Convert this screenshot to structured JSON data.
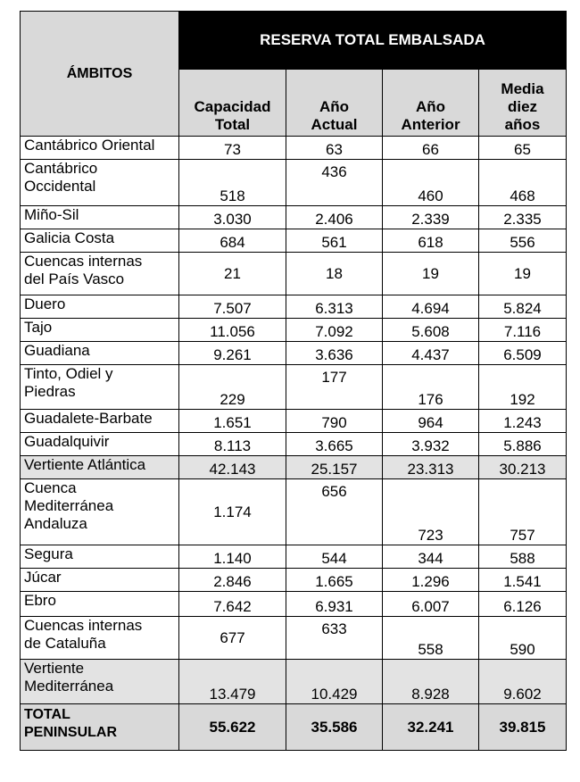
{
  "header": {
    "ambitos": "ÁMBITOS",
    "reserva": "RESERVA TOTAL EMBALSADA",
    "col1": [
      "Capacidad",
      "Total"
    ],
    "col2": [
      "Año",
      "Actual"
    ],
    "col3": [
      "Año",
      "Anterior"
    ],
    "col4": [
      "Media",
      "diez",
      "años"
    ]
  },
  "rows": [
    {
      "name": [
        "Cantábrico Oriental"
      ],
      "values": [
        "73",
        "63",
        "66",
        "65"
      ]
    },
    {
      "name": [
        "Cantábrico",
        "Occidental"
      ],
      "values": [
        "518",
        "436",
        "460",
        "468"
      ]
    },
    {
      "name": [
        "Miño-Sil"
      ],
      "values": [
        "3.030",
        "2.406",
        "2.339",
        "2.335"
      ]
    },
    {
      "name": [
        "Galicia Costa"
      ],
      "values": [
        "684",
        "561",
        "618",
        "556"
      ]
    },
    {
      "name": [
        "Cuencas internas",
        "del País Vasco"
      ],
      "values": [
        "21",
        "18",
        "19",
        "19"
      ]
    },
    {
      "name": [
        "Duero"
      ],
      "values": [
        "7.507",
        "6.313",
        "4.694",
        "5.824"
      ]
    },
    {
      "name": [
        "Tajo"
      ],
      "values": [
        "11.056",
        "7.092",
        "5.608",
        "7.116"
      ]
    },
    {
      "name": [
        "Guadiana"
      ],
      "values": [
        "9.261",
        "3.636",
        "4.437",
        "6.509"
      ]
    },
    {
      "name": [
        "Tinto, Odiel y",
        "Piedras"
      ],
      "values": [
        "229",
        "177",
        "176",
        "192"
      ]
    },
    {
      "name": [
        "Guadalete-Barbate"
      ],
      "values": [
        "1.651",
        "790",
        "964",
        "1.243"
      ]
    },
    {
      "name": [
        "Guadalquivir"
      ],
      "values": [
        "8.113",
        "3.665",
        "3.932",
        "5.886"
      ]
    },
    {
      "name": [
        "Vertiente Atlántica"
      ],
      "values": [
        "42.143",
        "25.157",
        "23.313",
        "30.213"
      ]
    },
    {
      "name": [
        "Cuenca",
        "Mediterránea",
        "Andaluza"
      ],
      "values": [
        "1.174",
        "656",
        "723",
        "757"
      ]
    },
    {
      "name": [
        "Segura"
      ],
      "values": [
        "1.140",
        "544",
        "344",
        "588"
      ]
    },
    {
      "name": [
        "Júcar"
      ],
      "values": [
        "2.846",
        "1.665",
        "1.296",
        "1.541"
      ]
    },
    {
      "name": [
        "Ebro"
      ],
      "values": [
        "7.642",
        "6.931",
        "6.007",
        "6.126"
      ]
    },
    {
      "name": [
        "Cuencas internas",
        "de Cataluña"
      ],
      "values": [
        "677",
        "633",
        "558",
        "590"
      ]
    },
    {
      "name": [
        "Vertiente",
        "Mediterránea"
      ],
      "values": [
        "13.479",
        "10.429",
        "8.928",
        "9.602"
      ]
    },
    {
      "name": [
        "TOTAL",
        "PENINSULAR"
      ],
      "values": [
        "55.622",
        "35.586",
        "32.241",
        "39.815"
      ]
    }
  ]
}
